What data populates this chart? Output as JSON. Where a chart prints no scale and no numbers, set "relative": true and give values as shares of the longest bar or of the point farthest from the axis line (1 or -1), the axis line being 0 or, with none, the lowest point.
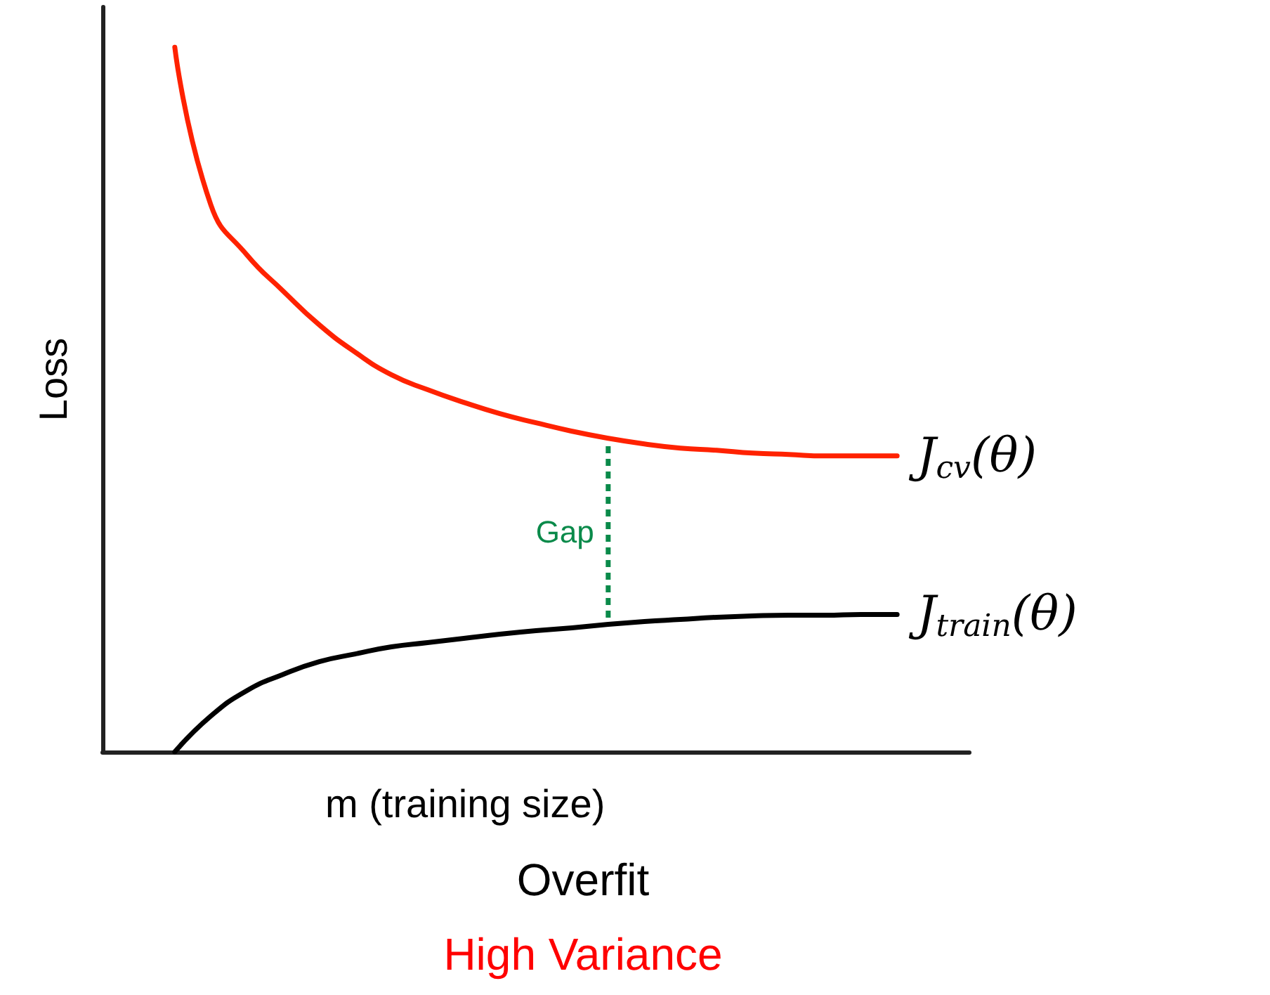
{
  "chart_data": {
    "type": "line",
    "title": "Overfit",
    "subtitle": "High Variance",
    "xlabel": "m (training size)",
    "ylabel": "Loss",
    "relative": true,
    "marker": "none",
    "annotations": [
      "Gap"
    ],
    "categories": [
      null,
      null,
      null,
      null,
      null,
      null,
      null,
      null,
      null,
      null,
      null,
      null,
      null,
      null,
      null,
      null,
      null,
      null,
      null,
      null,
      null,
      null,
      null,
      null,
      null
    ],
    "series": [
      {
        "name": "J$_{cv}$(θ)",
        "color": "#ff2200",
        "values": [
          null,
          null,
          1.0,
          0.776,
          0.705,
          0.654,
          0.606,
          0.567,
          0.535,
          0.514,
          0.496,
          0.48,
          0.467,
          0.455,
          0.445,
          0.437,
          0.431,
          0.428,
          0.424,
          0.422,
          0.42,
          0.42,
          0.42,
          null,
          null
        ]
      },
      {
        "name": "J$_{train}$(θ)",
        "color": "#000000",
        "values": [
          null,
          null,
          0.0,
          0.051,
          0.087,
          0.11,
          0.128,
          0.139,
          0.149,
          0.155,
          0.161,
          0.167,
          0.172,
          0.176,
          0.181,
          0.185,
          0.188,
          0.191,
          0.193,
          0.194,
          0.194,
          0.195,
          0.195,
          null,
          null
        ]
      }
    ]
  }
}
